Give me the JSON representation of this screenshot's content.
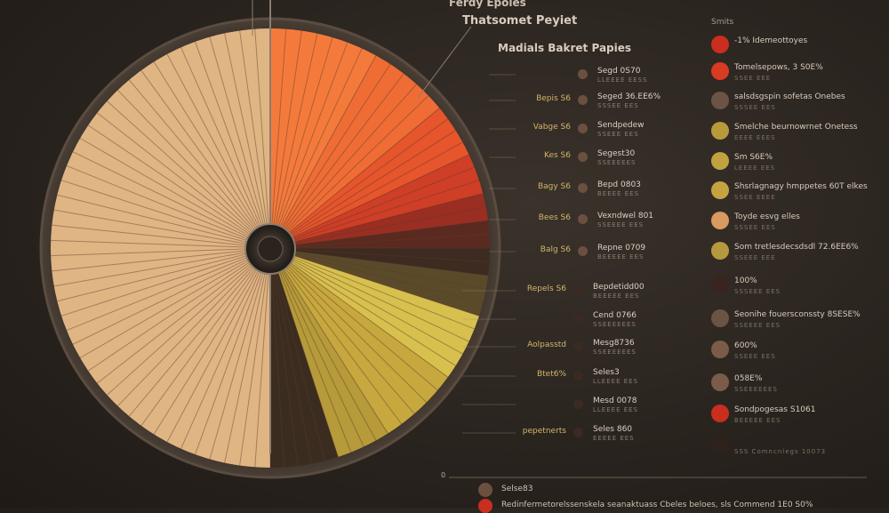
{
  "titles": {
    "top": "Ferdy Epoles",
    "main": "Thatsomet Peyiet",
    "sub": "Madials Bakret Papies"
  },
  "legend_header": "Smits",
  "axis_zero": "0",
  "colors": {
    "tan": "#e2b582",
    "orange": "#f07a40",
    "red": "#d93a22",
    "darkred": "#7a2a1e",
    "brown": "#4a2e22",
    "yellow": "#c9b043",
    "bg": "#2a241f"
  },
  "chart_data": {
    "type": "pie",
    "title": "Thatsomet Peyiet",
    "slices": [
      {
        "value": 8,
        "color": "#f47a3c"
      },
      {
        "value": 6,
        "color": "#ef6d35"
      },
      {
        "value": 4,
        "color": "#e6552c"
      },
      {
        "value": 3,
        "color": "#cf3e27"
      },
      {
        "value": 2,
        "color": "#9a2e22"
      },
      {
        "value": 2,
        "color": "#5a2a20"
      },
      {
        "value": 2,
        "color": "#3d2a20"
      },
      {
        "value": 3,
        "color": "#5a4a2a"
      },
      {
        "value": 5,
        "color": "#d8c04e"
      },
      {
        "value": 6,
        "color": "#c7a83e"
      },
      {
        "value": 4,
        "color": "#b79a3a"
      },
      {
        "value": 5,
        "color": "#3b2c20"
      },
      {
        "value": 50,
        "color": "#e0b584"
      }
    ]
  },
  "mid_labels": [
    {
      "label": "",
      "value": "Segd 0S70",
      "sub": "LLEEEE EESS",
      "dot": "#6b5040"
    },
    {
      "label": "Bepis S6",
      "value": "Seged 36.EE6%",
      "sub": "SSSEE EES",
      "dot": "#6b5040"
    },
    {
      "label": "Vabge S6",
      "value": "Sendpedew",
      "sub": "SSEEE EES",
      "dot": "#6b5040"
    },
    {
      "label": "Kes S6",
      "value": "Segest30",
      "sub": "SSEEEEES",
      "dot": "#6b5040"
    },
    {
      "label": "Bagy S6",
      "value": "Bepd 0803",
      "sub": "BEEEE EES",
      "dot": "#6b5040"
    },
    {
      "label": "Bees S6",
      "value": "Vexndwel 801",
      "sub": "SSEEEE EES",
      "dot": "#6b5040"
    },
    {
      "label": "Balg S6",
      "value": "Repne 0709",
      "sub": "BEEEEE EES",
      "dot": "#6b5040"
    },
    {
      "label": "Repels S6",
      "value": "Bepdetidd00",
      "sub": "BEEEEE EES",
      "dot": "#3a2a22"
    },
    {
      "label": "",
      "value": "Cend 0766",
      "sub": "SSEEEEEES",
      "dot": "#3a2a22"
    },
    {
      "label": "Aolpasstd",
      "value": "Mesg8736",
      "sub": "SSEEEEEES",
      "dot": "#3a2a22"
    },
    {
      "label": "Btet6%",
      "value": "Seles3",
      "sub": "LLEEEE EES",
      "dot": "#3a2a22"
    },
    {
      "label": "",
      "value": "Mesd 0078",
      "sub": "LLEEEE EES",
      "dot": "#3a2a22"
    },
    {
      "label": "pepetnerts",
      "value": "Seles 860",
      "sub": "EEEEE EES",
      "dot": "#3a2a22"
    }
  ],
  "legend": [
    {
      "title": "-1% Idemeottoyes",
      "sub": "",
      "dot": "#c92e1e"
    },
    {
      "title": "Tomelsepows, 3 S0E%",
      "sub": "SSEE EEE",
      "dot": "#d93a22"
    },
    {
      "title": "salsdsgspin sofetas Onebes",
      "sub": "SSSEE EES",
      "dot": "#6b5444"
    },
    {
      "title": "Smelche beurnowrnet Onetess",
      "sub": "EEEE EEES",
      "dot": "#b89a3a"
    },
    {
      "title": "Sm S6E%",
      "sub": "LEEEE EES",
      "dot": "#c0a23e"
    },
    {
      "title": "Shsrlagnagy hmppetes 60T elkes",
      "sub": "SSEE EEEE",
      "dot": "#c4a440"
    },
    {
      "title": "Toyde esvg elles",
      "sub": "SSSEE EES",
      "dot": "#d89a5e"
    },
    {
      "title": "Som tretlesdecsdsdl 72.6EE6%",
      "sub": "SSEEE EEE",
      "dot": "#b5993c"
    },
    {
      "title": "100%",
      "sub": "SSSEEE EES",
      "dot": "#3a2420"
    },
    {
      "title": "Seonihe fouersconssty 8SESE%",
      "sub": "SSEEEE EES",
      "dot": "#6b5444"
    },
    {
      "title": "600%",
      "sub": "SSEEE EES",
      "dot": "#7a5c48"
    },
    {
      "title": "058E%",
      "sub": "SSEEEEEES",
      "dot": "#7a5c48"
    },
    {
      "title": "Sondpogesas S1061",
      "sub": "BEEEEE EES",
      "dot": "#c92e1e"
    },
    {
      "title": "",
      "sub": "SSS Comncnlegs 10073",
      "dot": "#2e221c"
    }
  ],
  "footer": [
    {
      "text": "Selse83",
      "dot": "#6b5040"
    },
    {
      "text": "Redinfermetorelssenskela seanaktuass Cbeles beloes, sls Commend 1E0 S0%",
      "dot": "#c92e1e"
    }
  ]
}
